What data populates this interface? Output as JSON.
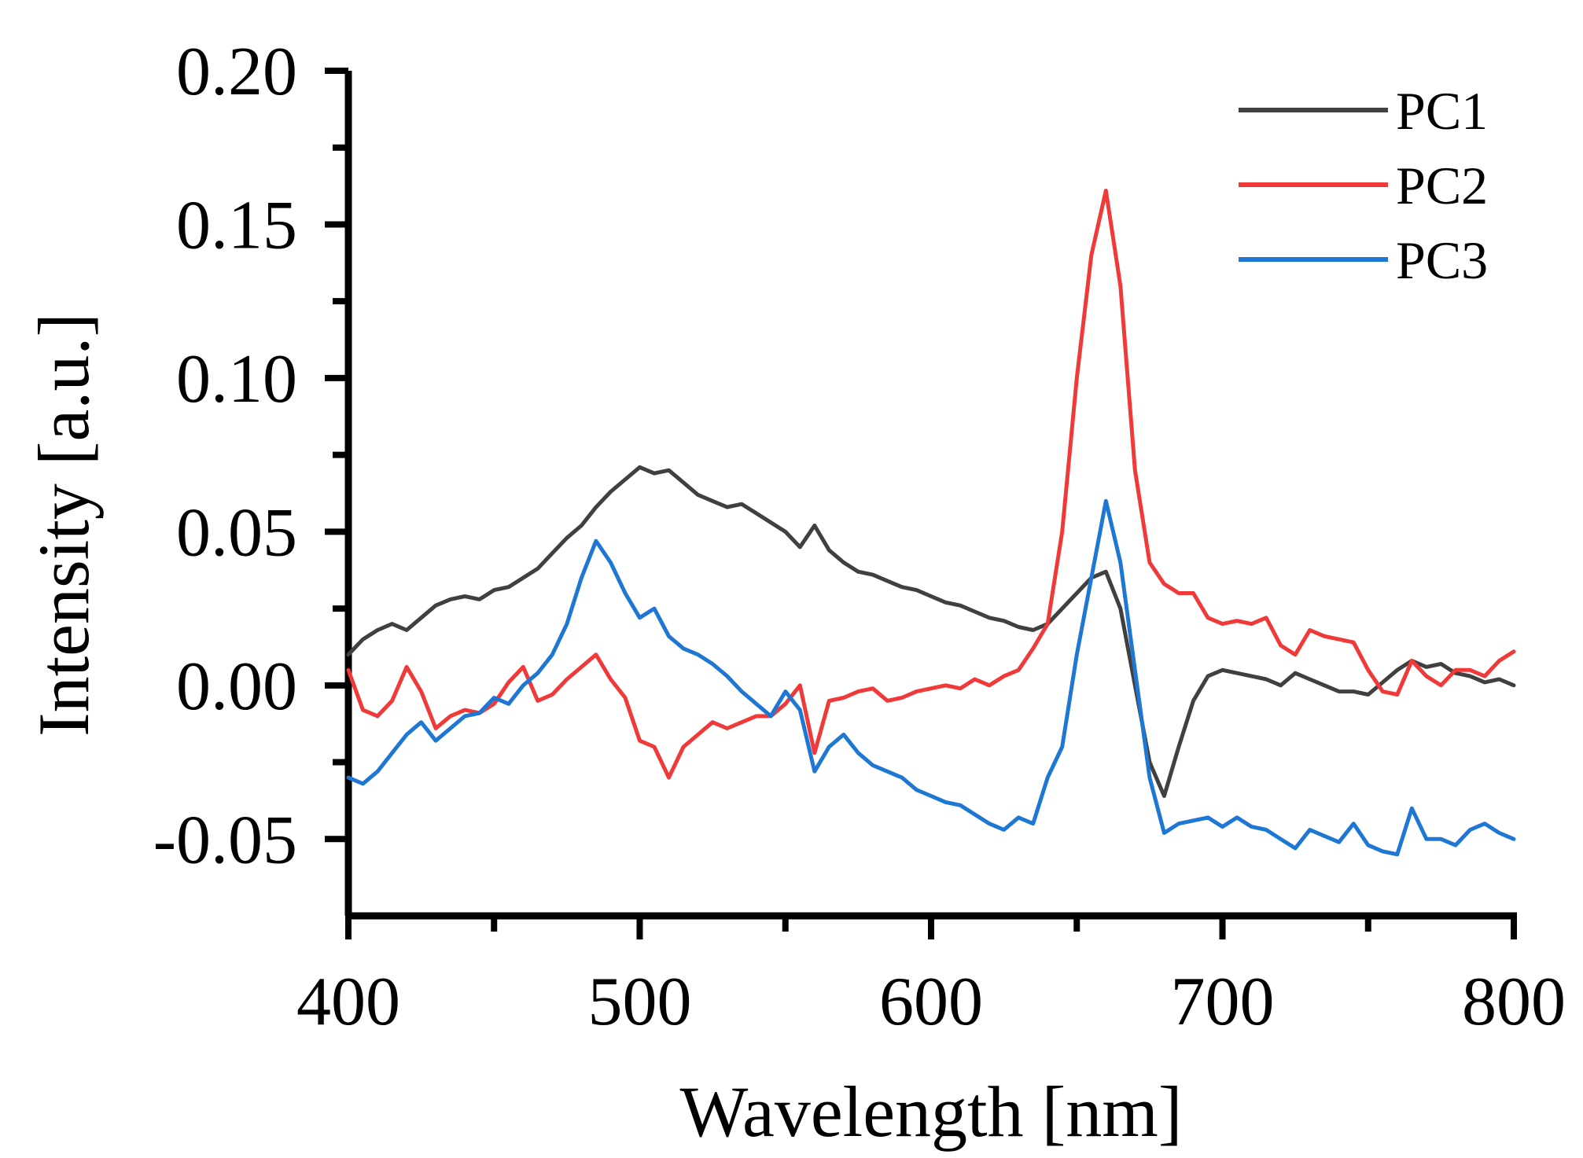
{
  "chart_data": {
    "type": "line",
    "title": "",
    "xlabel": "Wavelength [nm]",
    "ylabel": "Intensity [a.u.]",
    "xlim": [
      400,
      800
    ],
    "ylim": [
      -0.075,
      0.2
    ],
    "x_ticks": [
      400,
      500,
      600,
      700,
      800
    ],
    "x_tick_labels": [
      "400",
      "500",
      "600",
      "700",
      "800"
    ],
    "y_ticks": [
      -0.05,
      0.0,
      0.05,
      0.1,
      0.15,
      0.2
    ],
    "y_tick_labels": [
      "-0.05",
      "0.00",
      "0.05",
      "0.10",
      "0.15",
      "0.20"
    ],
    "grid": false,
    "legend_position": "top-right",
    "series": [
      {
        "name": "PC1",
        "color": "#404040",
        "x": [
          400,
          405,
          410,
          415,
          420,
          425,
          430,
          435,
          440,
          445,
          450,
          455,
          460,
          465,
          470,
          475,
          480,
          485,
          490,
          495,
          500,
          505,
          510,
          515,
          520,
          525,
          530,
          535,
          540,
          545,
          550,
          555,
          560,
          565,
          570,
          575,
          580,
          585,
          590,
          595,
          600,
          605,
          610,
          615,
          620,
          625,
          630,
          635,
          640,
          645,
          650,
          655,
          660,
          665,
          670,
          675,
          680,
          685,
          690,
          695,
          700,
          705,
          710,
          715,
          720,
          725,
          730,
          735,
          740,
          745,
          750,
          755,
          760,
          765,
          770,
          775,
          780,
          785,
          790,
          795,
          800
        ],
        "y": [
          0.01,
          0.015,
          0.018,
          0.02,
          0.018,
          0.022,
          0.026,
          0.028,
          0.029,
          0.028,
          0.031,
          0.032,
          0.035,
          0.038,
          0.043,
          0.048,
          0.052,
          0.058,
          0.063,
          0.067,
          0.071,
          0.069,
          0.07,
          0.066,
          0.062,
          0.06,
          0.058,
          0.059,
          0.056,
          0.053,
          0.05,
          0.045,
          0.052,
          0.044,
          0.04,
          0.037,
          0.036,
          0.034,
          0.032,
          0.031,
          0.029,
          0.027,
          0.026,
          0.024,
          0.022,
          0.021,
          0.019,
          0.018,
          0.02,
          0.025,
          0.03,
          0.035,
          0.037,
          0.025,
          0.0,
          -0.025,
          -0.036,
          -0.02,
          -0.005,
          0.003,
          0.005,
          0.004,
          0.003,
          0.002,
          0.0,
          0.004,
          0.002,
          0.0,
          -0.002,
          -0.002,
          -0.003,
          0.001,
          0.005,
          0.008,
          0.006,
          0.007,
          0.004,
          0.003,
          0.001,
          0.002,
          0.0
        ]
      },
      {
        "name": "PC2",
        "color": "#f03a3a",
        "x": [
          400,
          405,
          410,
          415,
          420,
          425,
          430,
          435,
          440,
          445,
          450,
          455,
          460,
          465,
          470,
          475,
          480,
          485,
          490,
          495,
          500,
          505,
          510,
          515,
          520,
          525,
          530,
          535,
          540,
          545,
          550,
          555,
          560,
          565,
          570,
          575,
          580,
          585,
          590,
          595,
          600,
          605,
          610,
          615,
          620,
          625,
          630,
          635,
          640,
          645,
          650,
          655,
          660,
          665,
          670,
          675,
          680,
          685,
          690,
          695,
          700,
          705,
          710,
          715,
          720,
          725,
          730,
          735,
          740,
          745,
          750,
          755,
          760,
          765,
          770,
          775,
          780,
          785,
          790,
          795,
          800
        ],
        "y": [
          0.005,
          -0.008,
          -0.01,
          -0.005,
          0.006,
          -0.002,
          -0.014,
          -0.01,
          -0.008,
          -0.009,
          -0.006,
          0.001,
          0.006,
          -0.005,
          -0.003,
          0.002,
          0.006,
          0.01,
          0.002,
          -0.004,
          -0.018,
          -0.02,
          -0.03,
          -0.02,
          -0.016,
          -0.012,
          -0.014,
          -0.012,
          -0.01,
          -0.01,
          -0.006,
          0.0,
          -0.022,
          -0.005,
          -0.004,
          -0.002,
          -0.001,
          -0.005,
          -0.004,
          -0.002,
          -0.001,
          0.0,
          -0.001,
          0.002,
          0.0,
          0.003,
          0.005,
          0.012,
          0.02,
          0.05,
          0.1,
          0.14,
          0.161,
          0.13,
          0.07,
          0.04,
          0.033,
          0.03,
          0.03,
          0.022,
          0.02,
          0.021,
          0.02,
          0.022,
          0.013,
          0.01,
          0.018,
          0.016,
          0.015,
          0.014,
          0.005,
          -0.002,
          -0.003,
          0.008,
          0.003,
          0.0,
          0.005,
          0.005,
          0.003,
          0.008,
          0.011
        ]
      },
      {
        "name": "PC3",
        "color": "#1f77d4",
        "x": [
          400,
          405,
          410,
          415,
          420,
          425,
          430,
          435,
          440,
          445,
          450,
          455,
          460,
          465,
          470,
          475,
          480,
          485,
          490,
          495,
          500,
          505,
          510,
          515,
          520,
          525,
          530,
          535,
          540,
          545,
          550,
          555,
          560,
          565,
          570,
          575,
          580,
          585,
          590,
          595,
          600,
          605,
          610,
          615,
          620,
          625,
          630,
          635,
          640,
          645,
          650,
          655,
          660,
          665,
          670,
          675,
          680,
          685,
          690,
          695,
          700,
          705,
          710,
          715,
          720,
          725,
          730,
          735,
          740,
          745,
          750,
          755,
          760,
          765,
          770,
          775,
          780,
          785,
          790,
          795,
          800
        ],
        "y": [
          -0.03,
          -0.032,
          -0.028,
          -0.022,
          -0.016,
          -0.012,
          -0.018,
          -0.014,
          -0.01,
          -0.009,
          -0.004,
          -0.006,
          0.0,
          0.004,
          0.01,
          0.02,
          0.035,
          0.047,
          0.04,
          0.03,
          0.022,
          0.025,
          0.016,
          0.012,
          0.01,
          0.007,
          0.003,
          -0.002,
          -0.006,
          -0.01,
          -0.002,
          -0.008,
          -0.028,
          -0.02,
          -0.016,
          -0.022,
          -0.026,
          -0.028,
          -0.03,
          -0.034,
          -0.036,
          -0.038,
          -0.039,
          -0.042,
          -0.045,
          -0.047,
          -0.043,
          -0.045,
          -0.03,
          -0.02,
          0.01,
          0.035,
          0.06,
          0.04,
          0.005,
          -0.03,
          -0.048,
          -0.045,
          -0.044,
          -0.043,
          -0.046,
          -0.043,
          -0.046,
          -0.047,
          -0.05,
          -0.053,
          -0.047,
          -0.049,
          -0.051,
          -0.045,
          -0.052,
          -0.054,
          -0.055,
          -0.04,
          -0.05,
          -0.05,
          -0.052,
          -0.047,
          -0.045,
          -0.048,
          -0.05
        ]
      }
    ]
  }
}
